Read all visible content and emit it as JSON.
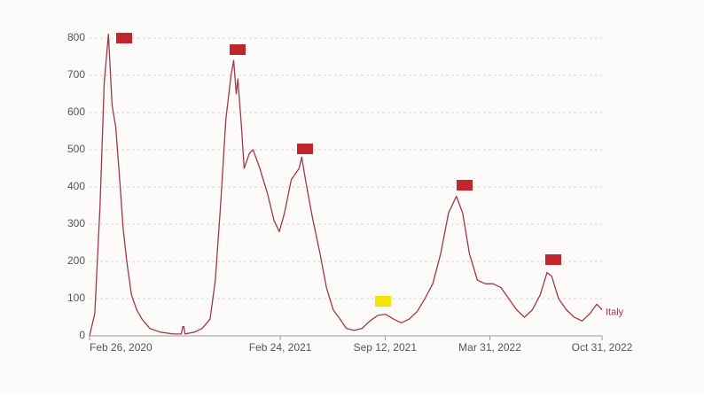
{
  "chart_data": {
    "type": "line",
    "x": [
      "2020-02-26",
      "2020-03-07",
      "2020-03-17",
      "2020-03-25",
      "2020-04-02",
      "2020-04-09",
      "2020-04-16",
      "2020-04-23",
      "2020-04-30",
      "2020-05-07",
      "2020-05-16",
      "2020-05-26",
      "2020-06-05",
      "2020-06-20",
      "2020-07-10",
      "2020-08-04",
      "2020-08-19",
      "2020-08-22",
      "2020-08-24",
      "2020-08-26",
      "2020-09-13",
      "2020-09-28",
      "2020-10-13",
      "2020-10-23",
      "2020-11-02",
      "2020-11-12",
      "2020-11-22",
      "2020-11-27",
      "2020-12-02",
      "2020-12-05",
      "2020-12-12",
      "2020-12-17",
      "2020-12-27",
      "2021-01-03",
      "2021-01-16",
      "2021-01-31",
      "2021-02-12",
      "2021-02-22",
      "2021-03-04",
      "2021-03-17",
      "2021-04-01",
      "2021-04-06",
      "2021-04-13",
      "2021-04-26",
      "2021-05-11",
      "2021-05-23",
      "2021-06-05",
      "2021-06-18",
      "2021-06-30",
      "2021-07-15",
      "2021-07-30",
      "2021-08-14",
      "2021-08-29",
      "2021-09-13",
      "2021-09-28",
      "2021-10-13",
      "2021-10-28",
      "2021-11-12",
      "2021-11-27",
      "2021-12-12",
      "2021-12-27",
      "2022-01-11",
      "2022-01-26",
      "2022-02-07",
      "2022-02-20",
      "2022-03-07",
      "2022-03-22",
      "2022-04-06",
      "2022-04-21",
      "2022-05-06",
      "2022-05-21",
      "2022-06-05",
      "2022-06-20",
      "2022-07-05",
      "2022-07-18",
      "2022-07-27",
      "2022-08-09",
      "2022-08-24",
      "2022-09-08",
      "2022-09-23",
      "2022-10-08",
      "2022-10-21",
      "2022-10-31"
    ],
    "series": [
      {
        "name": "Italy",
        "color": "#a0384a",
        "values": [
          0,
          60,
          350,
          680,
          810,
          620,
          560,
          430,
          290,
          200,
          110,
          70,
          45,
          20,
          10,
          5,
          5,
          25,
          25,
          5,
          10,
          20,
          45,
          150,
          350,
          580,
          700,
          740,
          650,
          690,
          560,
          450,
          490,
          500,
          450,
          380,
          310,
          280,
          330,
          420,
          450,
          480,
          420,
          320,
          220,
          130,
          70,
          45,
          20,
          15,
          20,
          40,
          55,
          58,
          45,
          35,
          45,
          65,
          100,
          140,
          220,
          330,
          375,
          330,
          220,
          150,
          140,
          140,
          130,
          100,
          70,
          50,
          70,
          110,
          170,
          160,
          100,
          70,
          50,
          40,
          60,
          85,
          70
        ]
      }
    ],
    "xlim": [
      "2020-02-26",
      "2022-10-31"
    ],
    "xticks": [
      {
        "value": "2020-02-26",
        "label": "Feb 26, 2020"
      },
      {
        "value": "2021-02-24",
        "label": "Feb 24, 2021"
      },
      {
        "value": "2021-09-12",
        "label": "Sep 12, 2021"
      },
      {
        "value": "2022-03-31",
        "label": "Mar 31, 2022"
      },
      {
        "value": "2022-10-31",
        "label": "Oct 31, 2022"
      }
    ],
    "ylim": [
      0,
      800
    ],
    "yticks": [
      0,
      100,
      200,
      300,
      400,
      500,
      600,
      700,
      800
    ],
    "grid": true
  }
}
